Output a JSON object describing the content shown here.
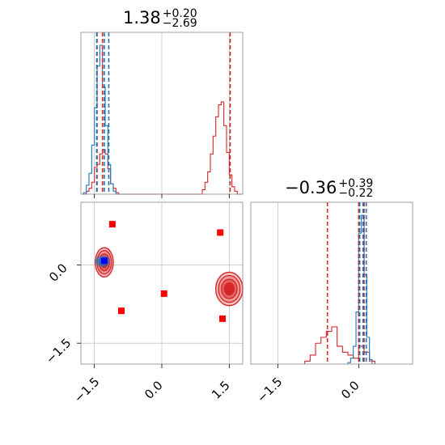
{
  "chart_data": {
    "type": "corner",
    "params": [
      {
        "title": {
          "median": "1.38",
          "plus": "+0.20",
          "minus": "−2.69"
        },
        "xlim": [
          -1.8,
          1.8
        ],
        "xticks": [
          -1.5,
          0.0,
          1.5
        ],
        "xtick_labels": [
          "−1.5",
          "0.0",
          "1.5"
        ],
        "quantile_lines": {
          "red": [
            -1.44,
            -1.32,
            1.52
          ],
          "blue": [
            -1.45,
            -1.28,
            -1.18
          ]
        },
        "hist_red": {
          "bins": [
            -1.8,
            -1.74,
            -1.68,
            -1.62,
            -1.56,
            -1.5,
            -1.44,
            -1.38,
            -1.32,
            -1.26,
            -1.2,
            -1.14,
            -1.08,
            -1.02,
            -0.96,
            -0.9,
            0.9,
            0.96,
            1.02,
            1.08,
            1.14,
            1.2,
            1.26,
            1.32,
            1.38,
            1.44,
            1.5,
            1.56,
            1.62,
            1.68,
            1.74,
            1.8
          ],
          "heights": [
            0,
            0,
            0.02,
            0.04,
            0.08,
            0.18,
            0.2,
            0.27,
            0.3,
            0.27,
            0.17,
            0.07,
            0.04,
            0.01,
            0,
            0,
            0.03,
            0.08,
            0.15,
            0.27,
            0.39,
            0.52,
            0.6,
            0.62,
            0.46,
            0.28,
            0.13,
            0.05,
            0.02,
            0,
            0
          ]
        },
        "hist_blue": {
          "bins": [
            -1.8,
            -1.74,
            -1.68,
            -1.62,
            -1.56,
            -1.5,
            -1.44,
            -1.38,
            -1.32,
            -1.26,
            -1.2,
            -1.14,
            -1.08,
            -1.02,
            -0.96,
            -0.9
          ],
          "heights": [
            0,
            0.01,
            0.06,
            0.14,
            0.33,
            0.58,
            0.86,
            1.0,
            0.72,
            0.46,
            0.2,
            0.07,
            0.02,
            0,
            0
          ]
        }
      },
      {
        "title": {
          "median": "−0.36",
          "plus": "+0.39",
          "minus": "−0.22"
        },
        "xlim": [
          -2.0,
          1.0
        ],
        "xticks": [
          -1.5,
          0.0
        ],
        "xtick_labels": [
          "−1.5",
          "0.0"
        ],
        "quantile_lines": {
          "red": [
            -0.58,
            0.0,
            0.1
          ],
          "blue": [
            0.02,
            0.08,
            0.14
          ]
        },
        "hist_red": {
          "bins": [
            -1.0,
            -0.9,
            -0.8,
            -0.7,
            -0.6,
            -0.5,
            -0.4,
            -0.3,
            -0.2,
            -0.1,
            0.0,
            0.1,
            0.2,
            0.3
          ],
          "heights": [
            0.02,
            0.06,
            0.14,
            0.18,
            0.22,
            0.25,
            0.12,
            0.08,
            0.06,
            0.04,
            0.12,
            0.08,
            0.02
          ]
        },
        "hist_blue": {
          "bins": [
            -0.2,
            -0.15,
            -0.1,
            -0.05,
            0.0,
            0.05,
            0.1,
            0.15,
            0.2,
            0.25
          ],
          "heights": [
            0.01,
            0.04,
            0.12,
            0.35,
            0.88,
            1.0,
            0.6,
            0.18,
            0.03
          ]
        }
      }
    ],
    "scatter_2d": {
      "xlim": [
        -1.8,
        1.8
      ],
      "ylim": [
        -1.9,
        1.2
      ],
      "yticks": [
        -1.5,
        0.0
      ],
      "ytick_labels": [
        "−1.5",
        "0.0"
      ],
      "red_points": [
        [
          -1.1,
          0.78
        ],
        [
          1.3,
          0.62
        ],
        [
          0.05,
          -0.55
        ],
        [
          -0.9,
          -0.88
        ],
        [
          1.35,
          -1.03
        ]
      ],
      "blue_points": [
        [
          -1.28,
          0.08
        ]
      ],
      "red_modes": [
        {
          "x": -1.28,
          "y": 0.05,
          "sx": 0.2,
          "sy": 0.28
        },
        {
          "x": 1.5,
          "y": -0.46,
          "sx": 0.3,
          "sy": 0.32
        }
      ],
      "blue_modes": [
        {
          "x": -1.32,
          "y": 0.07,
          "sx": 0.18,
          "sy": 0.12
        }
      ]
    },
    "colors": {
      "red": "#d62728",
      "blue": "#1f77b4",
      "grid": "#b0b0b0",
      "frame": "#888888"
    }
  }
}
